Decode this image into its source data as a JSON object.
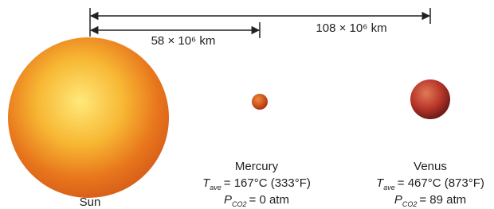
{
  "distances": [
    {
      "label": "108 × 10⁶ km"
    },
    {
      "label": "58 × 10⁶ km"
    }
  ],
  "bodies": [
    {
      "name": "Sun"
    },
    {
      "name": "Mercury",
      "temperature": {
        "symbol": "T",
        "subscript": "ave",
        "value": "= 167°C (333°F)"
      },
      "pressure": {
        "symbol": "P",
        "subscript": "CO2",
        "value": "= 0 atm"
      }
    },
    {
      "name": "Venus",
      "temperature": {
        "symbol": "T",
        "subscript": "ave",
        "value": "= 467°C (873°F)"
      },
      "pressure": {
        "symbol": "P",
        "subscript": "CO2",
        "value": "= 89 atm"
      }
    }
  ]
}
